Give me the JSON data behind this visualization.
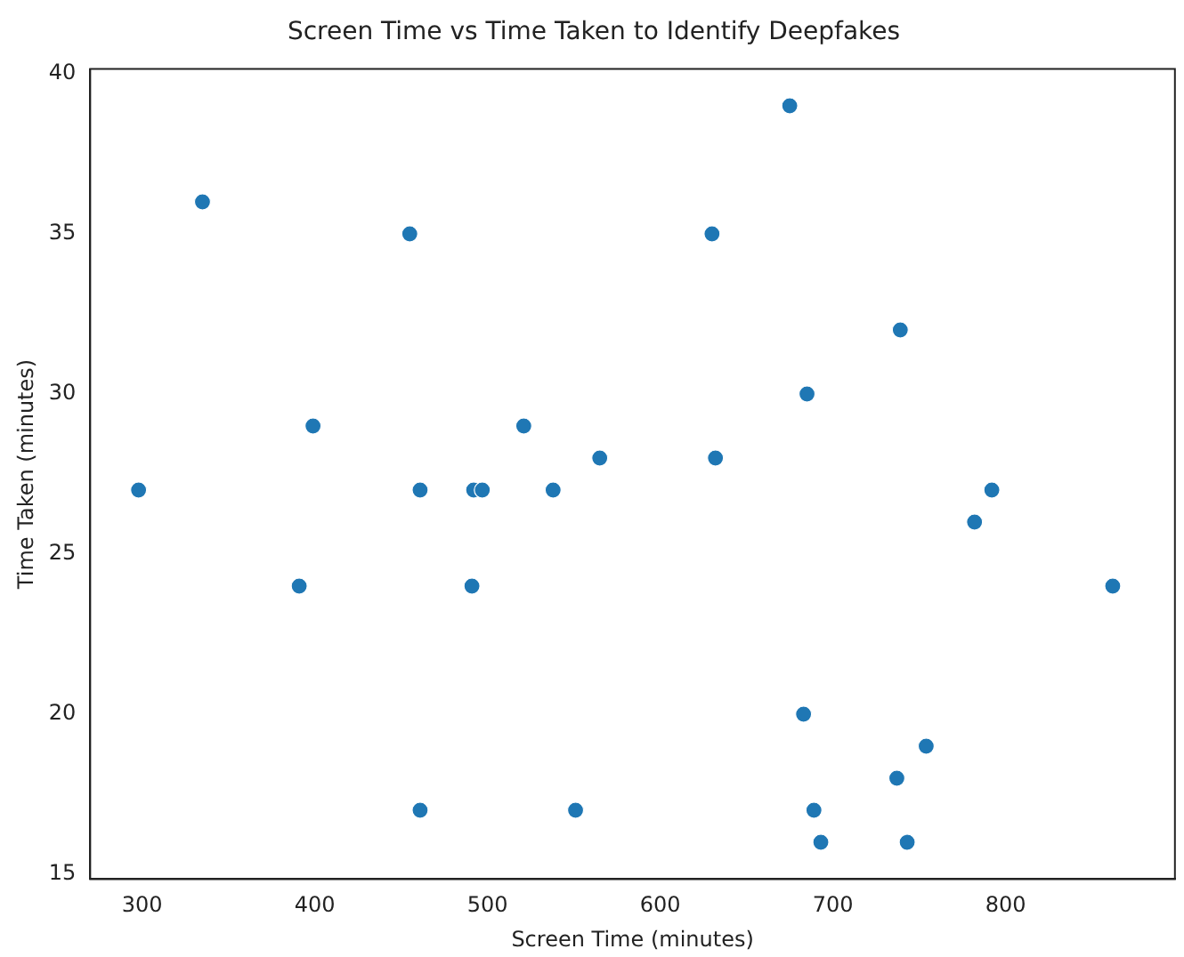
{
  "chart_data": {
    "type": "scatter",
    "title": "Screen Time vs Time Taken to Identify Deepfakes",
    "xlabel": "Screen Time (minutes)",
    "ylabel": "Time Taken (minutes)",
    "x": [
      298,
      335,
      399,
      391,
      455,
      461,
      461,
      492,
      497,
      491,
      521,
      538,
      565,
      551,
      630,
      632,
      675,
      685,
      683,
      689,
      693,
      739,
      737,
      743,
      754,
      782,
      792,
      862
    ],
    "series": [
      {
        "color": "#1f77b4",
        "values": [
          27,
          36,
          29,
          24,
          35,
          27,
          17,
          27,
          27,
          24,
          29,
          27,
          28,
          17,
          35,
          28,
          39,
          30,
          20,
          17,
          16,
          32,
          18,
          16,
          19,
          26,
          27,
          24
        ]
      }
    ],
    "xlim": [
      270,
      898
    ],
    "xticks": [
      300,
      400,
      500,
      600,
      700,
      800
    ],
    "ylim": [
      14.85,
      40.15
    ],
    "yticks": [
      15,
      20,
      25,
      30,
      35,
      40
    ],
    "marker": "circle",
    "grid": false,
    "legend": false
  }
}
